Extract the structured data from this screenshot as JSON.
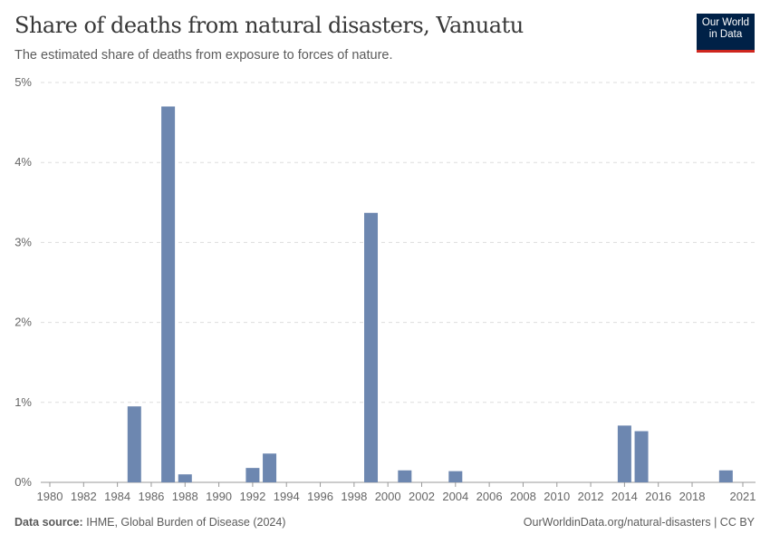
{
  "header": {
    "title": "Share of deaths from natural disasters, Vanuatu",
    "subtitle": "The estimated share of deaths from exposure to forces of nature.",
    "logo": "Our World in Data"
  },
  "footer": {
    "source_label": "Data source:",
    "source": "IHME, Global Burden of Disease (2024)",
    "link": "OurWorldinData.org/natural-disasters | CC BY"
  },
  "chart_data": {
    "type": "bar",
    "title": "Share of deaths from natural disasters, Vanuatu",
    "ylim": [
      0,
      5
    ],
    "xlim": [
      1980,
      2021
    ],
    "y_ticks": [
      "0%",
      "1%",
      "2%",
      "3%",
      "4%",
      "5%"
    ],
    "x_ticks": [
      "1980",
      "1982",
      "1984",
      "1986",
      "1988",
      "1990",
      "1992",
      "1994",
      "1996",
      "1998",
      "2000",
      "2002",
      "2004",
      "2006",
      "2008",
      "2010",
      "2012",
      "2014",
      "2016",
      "2018",
      "2021"
    ],
    "grid": "horizontal dashed",
    "color": "#6d87b0",
    "categories": [
      1985,
      1987,
      1988,
      1992,
      1993,
      1999,
      2001,
      2004,
      2014,
      2015,
      2020
    ],
    "values": [
      0.95,
      4.7,
      0.1,
      0.18,
      0.36,
      3.37,
      0.15,
      0.14,
      0.71,
      0.64,
      0.15
    ]
  }
}
